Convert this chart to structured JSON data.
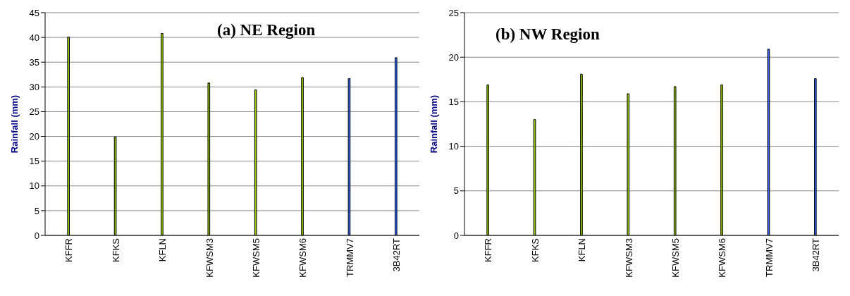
{
  "chart_data": [
    {
      "type": "bar",
      "title": "(a) NE Region",
      "ylabel": "Rainfall (mm)",
      "categories": [
        "KFFR",
        "KFKS",
        "KFLN",
        "KFWSM3",
        "KFWSM5",
        "KFWSM6",
        "TRMMV7",
        "3B42RT"
      ],
      "values": [
        40.1,
        19.9,
        40.8,
        30.8,
        29.4,
        31.9,
        31.7,
        35.9
      ],
      "colors": [
        "#99cc00",
        "#99cc00",
        "#99cc00",
        "#99cc00",
        "#99cc00",
        "#99cc00",
        "#3366ff",
        "#3366ff"
      ],
      "ylim": [
        0,
        45
      ],
      "yticks": [
        0,
        5,
        10,
        15,
        20,
        25,
        30,
        35,
        40,
        45
      ],
      "grid": "y",
      "legend": false
    },
    {
      "type": "bar",
      "title": "(b) NW Region",
      "ylabel": "Rainfall (mm)",
      "categories": [
        "KFFR",
        "KFKS",
        "KFLN",
        "KFWSM3",
        "KFWSM5",
        "KFWSM6",
        "TRMMV7",
        "3B42RT"
      ],
      "values": [
        16.9,
        13.0,
        18.1,
        15.9,
        16.7,
        16.9,
        20.9,
        17.6
      ],
      "colors": [
        "#99cc00",
        "#99cc00",
        "#99cc00",
        "#99cc00",
        "#99cc00",
        "#99cc00",
        "#3366ff",
        "#3366ff"
      ],
      "ylim": [
        0,
        25
      ],
      "yticks": [
        0,
        5,
        10,
        15,
        20,
        25
      ],
      "grid": "y",
      "legend": false
    }
  ]
}
